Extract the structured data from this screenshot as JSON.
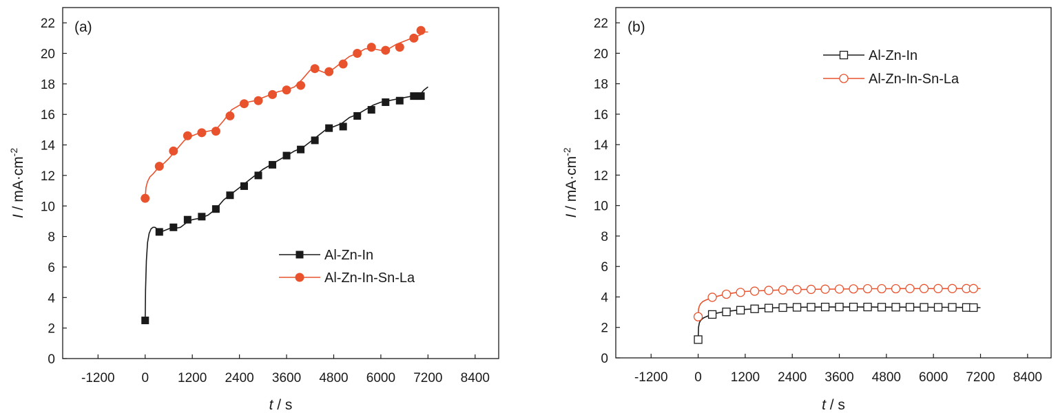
{
  "chart_data": [
    {
      "type": "line",
      "panel_label": "(a)",
      "xlabel": {
        "var": "t",
        "unit": " / s"
      },
      "ylabel": {
        "var": "I",
        "unit": " / mA·cm",
        "sup": "-2"
      },
      "xlim": [
        -2100,
        9000
      ],
      "ylim": [
        0,
        23
      ],
      "xticks": [
        -1200,
        0,
        1200,
        2400,
        3600,
        4800,
        6000,
        7200,
        8400
      ],
      "xtick_labels": [
        "-1200",
        "0",
        "1200",
        "2400",
        "3600",
        "4800",
        "6000",
        "7200",
        "8400"
      ],
      "yticks": [
        0,
        2,
        4,
        6,
        8,
        10,
        12,
        14,
        16,
        18,
        20,
        22
      ],
      "ytick_labels": [
        "0",
        "2",
        "4",
        "6",
        "8",
        "10",
        "12",
        "14",
        "16",
        "18",
        "20",
        "22"
      ],
      "legend": "center-right",
      "series": [
        {
          "name": "Al-Zn-In",
          "color": "#1a1a1a",
          "marker": "square-filled",
          "line_x": [
            0,
            10,
            30,
            60,
            100,
            150,
            200,
            250,
            300,
            350,
            400,
            500,
            600,
            700,
            800,
            900,
            1000,
            1100,
            1200,
            1400,
            1600,
            1800,
            2000,
            2200,
            2400,
            2600,
            2800,
            3000,
            3200,
            3400,
            3600,
            3800,
            4000,
            4200,
            4400,
            4600,
            4800,
            5000,
            5200,
            5400,
            5600,
            5800,
            6000,
            6200,
            6400,
            6600,
            6800,
            7000,
            7100,
            7200
          ],
          "line_y": [
            2.5,
            4.5,
            6.4,
            7.6,
            8.2,
            8.5,
            8.6,
            8.6,
            8.5,
            8.4,
            8.3,
            8.4,
            8.5,
            8.6,
            8.55,
            8.6,
            8.8,
            9.0,
            9.1,
            9.2,
            9.4,
            9.8,
            10.4,
            10.8,
            11.2,
            11.6,
            12.0,
            12.4,
            12.7,
            13.0,
            13.3,
            13.6,
            13.8,
            14.2,
            14.6,
            15.0,
            15.2,
            15.4,
            15.8,
            16.0,
            16.3,
            16.6,
            16.8,
            16.9,
            17.0,
            17.1,
            17.2,
            17.3,
            17.6,
            17.8
          ],
          "marker_x": [
            0,
            360,
            720,
            1080,
            1440,
            1800,
            2160,
            2520,
            2880,
            3240,
            3600,
            3960,
            4320,
            4680,
            5040,
            5400,
            5760,
            6120,
            6480,
            6840,
            7020
          ],
          "marker_y": [
            2.5,
            8.3,
            8.6,
            9.1,
            9.3,
            9.8,
            10.7,
            11.3,
            12.0,
            12.7,
            13.3,
            13.7,
            14.3,
            15.1,
            15.2,
            15.9,
            16.3,
            16.8,
            16.9,
            17.2,
            17.2
          ]
        },
        {
          "name": "Al-Zn-In-Sn-La",
          "color": "#e8532e",
          "marker": "circle-filled",
          "line_x": [
            0,
            20,
            60,
            120,
            200,
            300,
            400,
            600,
            800,
            1000,
            1200,
            1400,
            1600,
            1800,
            2000,
            2200,
            2400,
            2600,
            2800,
            3000,
            3200,
            3400,
            3600,
            3800,
            4000,
            4200,
            4400,
            4600,
            4800,
            5000,
            5200,
            5400,
            5600,
            5800,
            6000,
            6200,
            6400,
            6600,
            6800,
            7000,
            7100,
            7200
          ],
          "line_y": [
            10.5,
            11.2,
            11.6,
            11.9,
            12.1,
            12.4,
            12.6,
            13.1,
            13.7,
            14.3,
            14.6,
            14.8,
            14.9,
            15.0,
            15.6,
            16.3,
            16.6,
            16.8,
            16.9,
            17.1,
            17.3,
            17.5,
            17.6,
            17.8,
            18.3,
            18.9,
            18.9,
            18.7,
            19.0,
            19.4,
            19.8,
            20.0,
            20.3,
            20.3,
            20.2,
            20.3,
            20.6,
            20.8,
            21.0,
            21.2,
            21.4,
            21.4
          ],
          "marker_x": [
            0,
            360,
            720,
            1080,
            1440,
            1800,
            2160,
            2520,
            2880,
            3240,
            3600,
            3960,
            4320,
            4680,
            5040,
            5400,
            5760,
            6120,
            6480,
            6840,
            7020
          ],
          "marker_y": [
            10.5,
            12.6,
            13.6,
            14.6,
            14.8,
            14.9,
            15.9,
            16.7,
            16.9,
            17.3,
            17.6,
            17.9,
            19.0,
            18.8,
            19.3,
            20.0,
            20.4,
            20.2,
            20.4,
            21.0,
            21.5
          ]
        }
      ]
    },
    {
      "type": "line",
      "panel_label": "(b)",
      "xlabel": {
        "var": "t",
        "unit": " / s"
      },
      "ylabel": {
        "var": "I",
        "unit": " / mA·cm",
        "sup": "-2"
      },
      "xlim": [
        -2100,
        9000
      ],
      "ylim": [
        0,
        23
      ],
      "xticks": [
        -1200,
        0,
        1200,
        2400,
        3600,
        4800,
        6000,
        7200,
        8400
      ],
      "xtick_labels": [
        "-1200",
        "0",
        "1200",
        "2400",
        "3600",
        "4800",
        "6000",
        "7200",
        "8400"
      ],
      "yticks": [
        0,
        2,
        4,
        6,
        8,
        10,
        12,
        14,
        16,
        18,
        20,
        22
      ],
      "ytick_labels": [
        "0",
        "2",
        "4",
        "6",
        "8",
        "10",
        "12",
        "14",
        "16",
        "18",
        "20",
        "22"
      ],
      "legend": "top-center",
      "series": [
        {
          "name": "Al-Zn-In",
          "color": "#1a1a1a",
          "marker": "square-open",
          "line_x": [
            0,
            10,
            30,
            60,
            120,
            200,
            300,
            400,
            600,
            800,
            1000,
            1200,
            1500,
            1800,
            2100,
            2400,
            2800,
            3200,
            3600,
            4000,
            4400,
            4800,
            5200,
            5600,
            6000,
            6400,
            6800,
            7200
          ],
          "line_y": [
            1.2,
            2.0,
            2.3,
            2.45,
            2.6,
            2.7,
            2.8,
            2.9,
            3.0,
            3.07,
            3.13,
            3.18,
            3.23,
            3.27,
            3.3,
            3.32,
            3.33,
            3.34,
            3.34,
            3.34,
            3.34,
            3.33,
            3.33,
            3.33,
            3.32,
            3.32,
            3.31,
            3.3
          ],
          "marker_x": [
            0,
            360,
            720,
            1080,
            1440,
            1800,
            2160,
            2520,
            2880,
            3240,
            3600,
            3960,
            4320,
            4680,
            5040,
            5400,
            5760,
            6120,
            6480,
            6840,
            7020
          ],
          "marker_y": [
            1.2,
            2.85,
            3.02,
            3.13,
            3.22,
            3.27,
            3.3,
            3.32,
            3.33,
            3.34,
            3.34,
            3.34,
            3.34,
            3.33,
            3.33,
            3.33,
            3.32,
            3.32,
            3.32,
            3.31,
            3.3
          ]
        },
        {
          "name": "Al-Zn-In-Sn-La",
          "color": "#e8532e",
          "marker": "circle-open",
          "line_x": [
            0,
            10,
            30,
            60,
            120,
            200,
            300,
            400,
            600,
            800,
            1000,
            1200,
            1500,
            1800,
            2100,
            2400,
            2800,
            3200,
            3600,
            4000,
            4400,
            4800,
            5200,
            5600,
            6000,
            6400,
            6800,
            7200
          ],
          "line_y": [
            2.7,
            3.2,
            3.4,
            3.55,
            3.7,
            3.8,
            3.9,
            3.98,
            4.12,
            4.22,
            4.3,
            4.36,
            4.4,
            4.43,
            4.46,
            4.48,
            4.5,
            4.51,
            4.52,
            4.53,
            4.54,
            4.54,
            4.55,
            4.55,
            4.55,
            4.55,
            4.55,
            4.55
          ],
          "marker_x": [
            0,
            360,
            720,
            1080,
            1440,
            1800,
            2160,
            2520,
            2880,
            3240,
            3600,
            3960,
            4320,
            4680,
            5040,
            5400,
            5760,
            6120,
            6480,
            6840,
            7020
          ],
          "marker_y": [
            2.7,
            3.98,
            4.18,
            4.3,
            4.38,
            4.43,
            4.46,
            4.48,
            4.5,
            4.51,
            4.52,
            4.53,
            4.54,
            4.54,
            4.54,
            4.55,
            4.55,
            4.55,
            4.55,
            4.55,
            4.55
          ]
        }
      ]
    }
  ]
}
